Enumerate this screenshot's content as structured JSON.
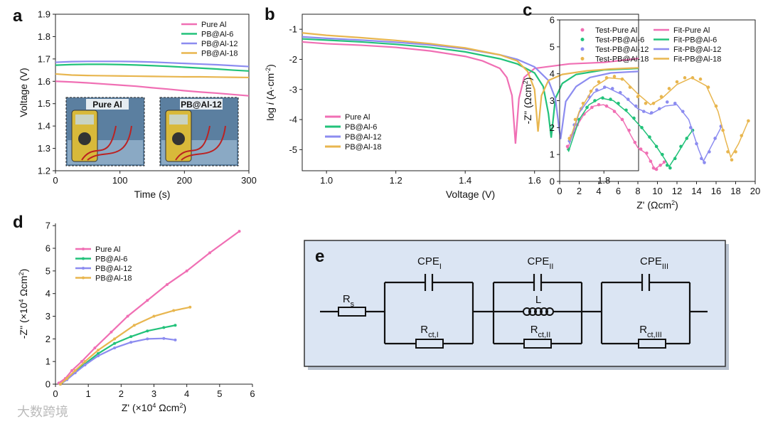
{
  "chart_data": [
    {
      "type": "line",
      "panel": "a",
      "x_label": "Time (s)",
      "y_label": "Voltage (V)",
      "x": [
        0,
        25,
        50,
        75,
        100,
        125,
        150,
        175,
        200,
        225,
        250,
        275,
        300
      ],
      "xlim": [
        0,
        300
      ],
      "xticks": [
        0,
        100,
        200,
        300
      ],
      "ylim": [
        1.2,
        1.9
      ],
      "yticks": [
        1.2,
        1.3,
        1.4,
        1.5,
        1.6,
        1.7,
        1.8,
        1.9
      ],
      "legend": "upper right",
      "series": [
        {
          "name": "Pure Al",
          "color": "#f06fb4",
          "values": [
            1.6,
            1.597,
            1.593,
            1.588,
            1.583,
            1.578,
            1.571,
            1.565,
            1.558,
            1.552,
            1.547,
            1.541,
            1.535
          ]
        },
        {
          "name": "PB@Al-6",
          "color": "#22c27a",
          "values": [
            1.672,
            1.675,
            1.676,
            1.676,
            1.675,
            1.673,
            1.67,
            1.667,
            1.663,
            1.659,
            1.655,
            1.65,
            1.646
          ]
        },
        {
          "name": "PB@Al-12",
          "color": "#8c8cf0",
          "values": [
            1.685,
            1.688,
            1.689,
            1.689,
            1.689,
            1.688,
            1.686,
            1.683,
            1.68,
            1.677,
            1.674,
            1.67,
            1.666
          ]
        },
        {
          "name": "PB@Al-18",
          "color": "#e8b64f",
          "values": [
            1.633,
            1.628,
            1.626,
            1.625,
            1.624,
            1.623,
            1.622,
            1.621,
            1.62,
            1.62,
            1.619,
            1.618,
            1.617
          ]
        }
      ],
      "insets": [
        {
          "label": "Pure Al"
        },
        {
          "label": "PB@Al-12"
        }
      ]
    },
    {
      "type": "line",
      "panel": "b",
      "x_label": "Voltage (V)",
      "y_label": [
        "log ",
        "i",
        " (A·cm",
        "-2",
        ")"
      ],
      "xlim": [
        0.93,
        1.9
      ],
      "xticks": [
        {
          "value": 1,
          "label": "1.0"
        },
        1.2,
        1.4,
        1.6,
        1.8
      ],
      "ylim": [
        -5.7,
        -0.5
      ],
      "yticks": [
        -5,
        -4,
        -3,
        -2,
        -1
      ],
      "legend": "lower left",
      "series": [
        {
          "name": "Pure Al",
          "color": "#f06fb4",
          "x": [
            0.93,
            1.0,
            1.1,
            1.2,
            1.3,
            1.4,
            1.45,
            1.5,
            1.52,
            1.535,
            1.545,
            1.555,
            1.57,
            1.6,
            1.7,
            1.8,
            1.9
          ],
          "values": [
            -1.42,
            -1.48,
            -1.53,
            -1.6,
            -1.72,
            -1.9,
            -2.05,
            -2.3,
            -2.6,
            -3.2,
            -4.8,
            -3.3,
            -2.6,
            -2.3,
            -2.15,
            -2.1,
            -1.97
          ]
        },
        {
          "name": "PB@Al-6",
          "color": "#22c27a",
          "x": [
            0.93,
            1.0,
            1.1,
            1.2,
            1.3,
            1.4,
            1.5,
            1.55,
            1.6,
            1.625,
            1.64,
            1.648,
            1.66,
            1.68,
            1.72,
            1.8,
            1.9
          ],
          "values": [
            -1.32,
            -1.36,
            -1.42,
            -1.5,
            -1.6,
            -1.75,
            -1.98,
            -2.15,
            -2.45,
            -2.9,
            -3.8,
            -4.6,
            -3.3,
            -2.8,
            -2.5,
            -2.35,
            -2.3
          ]
        },
        {
          "name": "PB@Al-12",
          "color": "#8c8cf0",
          "x": [
            0.93,
            1.0,
            1.1,
            1.2,
            1.3,
            1.4,
            1.5,
            1.55,
            1.6,
            1.64,
            1.66,
            1.675,
            1.69,
            1.72,
            1.76,
            1.82,
            1.9
          ],
          "values": [
            -1.25,
            -1.3,
            -1.36,
            -1.43,
            -1.52,
            -1.65,
            -1.85,
            -2.0,
            -2.25,
            -2.7,
            -3.3,
            -4.65,
            -3.4,
            -2.9,
            -2.6,
            -2.45,
            -2.4
          ]
        },
        {
          "name": "PB@Al-18",
          "color": "#e8b64f",
          "x": [
            0.93,
            1.0,
            1.1,
            1.2,
            1.3,
            1.4,
            1.5,
            1.55,
            1.58,
            1.6,
            1.61,
            1.62,
            1.64,
            1.68,
            1.75,
            1.82,
            1.9
          ],
          "values": [
            -1.12,
            -1.2,
            -1.28,
            -1.37,
            -1.48,
            -1.62,
            -1.85,
            -2.05,
            -2.4,
            -3.0,
            -4.4,
            -3.2,
            -2.7,
            -2.5,
            -2.38,
            -2.32,
            -2.28
          ]
        }
      ]
    },
    {
      "type": "scatter",
      "panel": "c",
      "x_label": [
        "Z' (Ωcm",
        "2",
        ")"
      ],
      "y_label": [
        "-Z'' (Ωcm",
        "2",
        ")"
      ],
      "xlim": [
        0,
        20
      ],
      "xticks": [
        0,
        2,
        4,
        6,
        8,
        10,
        12,
        14,
        16,
        18,
        20
      ],
      "ylim": [
        0,
        6
      ],
      "yticks": [
        0,
        1,
        2,
        3,
        4,
        5,
        6
      ],
      "legend": "upper left",
      "series": [
        {
          "name": "Test-Pure Al",
          "mode": "markers",
          "color": "#f06fb4",
          "x": [
            0.8,
            1.2,
            1.8,
            2.5,
            3.3,
            4.0,
            4.8,
            5.6,
            6.4,
            7.1,
            7.7,
            8.3,
            8.9,
            9.3,
            9.6,
            9.9,
            10.3,
            10.7
          ],
          "values": [
            1.3,
            1.7,
            2.1,
            2.5,
            2.75,
            2.85,
            2.8,
            2.6,
            2.3,
            1.9,
            1.45,
            1.2,
            1.05,
            0.75,
            0.5,
            0.45,
            0.6,
            0.72
          ]
        },
        {
          "name": "Test-PB@Al-6",
          "mode": "markers",
          "color": "#22c27a",
          "x": [
            0.9,
            1.4,
            2.0,
            2.8,
            3.6,
            4.4,
            5.2,
            6.0,
            6.8,
            7.6,
            8.4,
            9.2,
            9.9,
            10.5,
            11.0,
            11.3,
            11.8,
            12.4,
            13.0,
            13.6
          ],
          "values": [
            1.2,
            1.8,
            2.3,
            2.75,
            3.0,
            3.1,
            3.05,
            2.9,
            2.65,
            2.35,
            2.0,
            1.65,
            1.3,
            1.0,
            0.6,
            0.5,
            0.85,
            1.3,
            1.6,
            1.9
          ]
        },
        {
          "name": "Test-PB@Al-12",
          "mode": "markers",
          "color": "#8c8cf0",
          "x": [
            1.0,
            1.5,
            2.2,
            3.0,
            3.8,
            4.6,
            5.4,
            6.2,
            7.0,
            7.8,
            8.6,
            9.4,
            10.2,
            11.0,
            11.8,
            12.6,
            13.4,
            14.0,
            14.5,
            14.8,
            15.3,
            15.9,
            16.5
          ],
          "values": [
            1.5,
            2.1,
            2.7,
            3.15,
            3.4,
            3.5,
            3.45,
            3.3,
            3.05,
            2.8,
            2.6,
            2.55,
            2.7,
            2.95,
            2.9,
            2.6,
            2.0,
            1.4,
            0.85,
            0.7,
            1.1,
            1.6,
            2.05
          ]
        },
        {
          "name": "Test-PB@Al-18",
          "mode": "markers",
          "color": "#e8b64f",
          "x": [
            1.0,
            1.6,
            2.4,
            3.2,
            4.0,
            4.8,
            5.6,
            6.4,
            7.2,
            8.0,
            8.8,
            9.6,
            10.4,
            11.2,
            12.0,
            12.8,
            13.6,
            14.4,
            15.2,
            16.0,
            16.7,
            17.2,
            17.6,
            18.0,
            18.6,
            19.3
          ],
          "values": [
            1.6,
            2.3,
            2.9,
            3.35,
            3.7,
            3.85,
            3.9,
            3.8,
            3.5,
            3.15,
            2.9,
            2.9,
            3.15,
            3.45,
            3.7,
            3.85,
            3.85,
            3.8,
            3.5,
            2.8,
            1.9,
            1.1,
            0.8,
            1.1,
            1.7,
            2.25
          ]
        },
        {
          "name": "Fit-Pure Al",
          "mode": "line",
          "color": "#f06fb4",
          "x": [
            0.8,
            1.5,
            2.5,
            3.5,
            4.5,
            5.5,
            6.5,
            7.3,
            8.0,
            8.8,
            9.4,
            9.7,
            10.1,
            10.7
          ],
          "values": [
            1.2,
            1.9,
            2.5,
            2.8,
            2.85,
            2.65,
            2.25,
            1.7,
            1.25,
            1.05,
            0.7,
            0.45,
            0.55,
            0.7
          ]
        },
        {
          "name": "Fit-PB@Al-6",
          "mode": "line",
          "color": "#22c27a",
          "x": [
            0.9,
            2.0,
            3.0,
            4.2,
            5.5,
            7.0,
            8.5,
            9.8,
            10.8,
            11.2,
            12.0,
            13.0,
            13.6
          ],
          "values": [
            1.1,
            2.3,
            2.85,
            3.1,
            3.0,
            2.55,
            1.95,
            1.35,
            0.8,
            0.55,
            1.0,
            1.6,
            1.9
          ]
        },
        {
          "name": "Fit-PB@Al-12",
          "mode": "line",
          "color": "#8c8cf0",
          "x": [
            1.0,
            2.0,
            3.5,
            4.8,
            6.5,
            8.0,
            9.3,
            10.8,
            12.0,
            13.2,
            14.2,
            14.7,
            15.5,
            16.5
          ],
          "values": [
            1.4,
            2.55,
            3.3,
            3.5,
            3.2,
            2.7,
            2.5,
            2.8,
            2.85,
            2.3,
            1.2,
            0.75,
            1.3,
            2.0
          ]
        },
        {
          "name": "Fit-PB@Al-18",
          "mode": "line",
          "color": "#e8b64f",
          "x": [
            1.0,
            2.0,
            3.5,
            5.0,
            6.5,
            8.0,
            9.3,
            10.5,
            12.0,
            13.5,
            15.0,
            16.2,
            17.0,
            17.5,
            18.3,
            19.3
          ],
          "values": [
            1.5,
            2.6,
            3.5,
            3.85,
            3.8,
            3.25,
            2.85,
            3.1,
            3.6,
            3.85,
            3.55,
            2.6,
            1.5,
            0.9,
            1.4,
            2.25
          ]
        }
      ]
    },
    {
      "type": "line",
      "panel": "d",
      "markers": true,
      "x_label": [
        "Z' (×10",
        "4",
        " Ωcm",
        "2",
        ")"
      ],
      "y_label": [
        "-Z'' (×10",
        "4",
        " Ωcm",
        "2",
        ")"
      ],
      "xlim": [
        0,
        6
      ],
      "xticks": [
        0,
        1,
        2,
        3,
        4,
        5,
        6
      ],
      "ylim": [
        0,
        7.1
      ],
      "yticks": [
        0,
        1,
        2,
        3,
        4,
        5,
        6,
        7
      ],
      "legend": "upper left",
      "series": [
        {
          "name": "Pure Al",
          "color": "#f06fb4",
          "x": [
            0.1,
            0.3,
            0.5,
            0.8,
            1.2,
            1.7,
            2.2,
            2.8,
            3.4,
            4.0,
            4.7,
            5.6
          ],
          "values": [
            0.05,
            0.25,
            0.6,
            1.0,
            1.6,
            2.3,
            3.0,
            3.7,
            4.4,
            5.0,
            5.8,
            6.75
          ]
        },
        {
          "name": "PB@Al-6",
          "color": "#22c27a",
          "x": [
            0.15,
            0.35,
            0.6,
            0.9,
            1.3,
            1.8,
            2.3,
            2.8,
            3.3,
            3.65
          ],
          "values": [
            0,
            0.2,
            0.55,
            0.9,
            1.35,
            1.8,
            2.1,
            2.35,
            2.5,
            2.6
          ]
        },
        {
          "name": "PB@Al-12",
          "color": "#8c8cf0",
          "x": [
            0.15,
            0.35,
            0.6,
            0.9,
            1.3,
            1.8,
            2.3,
            2.8,
            3.3,
            3.65
          ],
          "values": [
            0,
            0.2,
            0.5,
            0.85,
            1.25,
            1.6,
            1.85,
            2.0,
            2.02,
            1.95
          ]
        },
        {
          "name": "PB@Al-18",
          "color": "#e8b64f",
          "x": [
            0.15,
            0.35,
            0.6,
            0.9,
            1.3,
            1.8,
            2.4,
            3.0,
            3.6,
            4.1
          ],
          "values": [
            0,
            0.25,
            0.6,
            1.0,
            1.5,
            2.0,
            2.6,
            3.0,
            3.25,
            3.4
          ]
        }
      ]
    }
  ],
  "circuit": {
    "panel": "e",
    "elements": [
      {
        "symbol": "R",
        "sub": "s"
      },
      {
        "symbol": "CPE",
        "sub": "I"
      },
      {
        "symbol": "R",
        "sub": "ct,I"
      },
      {
        "symbol": "CPE",
        "sub": "II"
      },
      {
        "symbol": "L"
      },
      {
        "symbol": "R",
        "sub": "ct,II"
      },
      {
        "symbol": "CPE",
        "sub": "III"
      },
      {
        "symbol": "R",
        "sub": "ct,III"
      }
    ]
  },
  "watermark": "大数跨境"
}
